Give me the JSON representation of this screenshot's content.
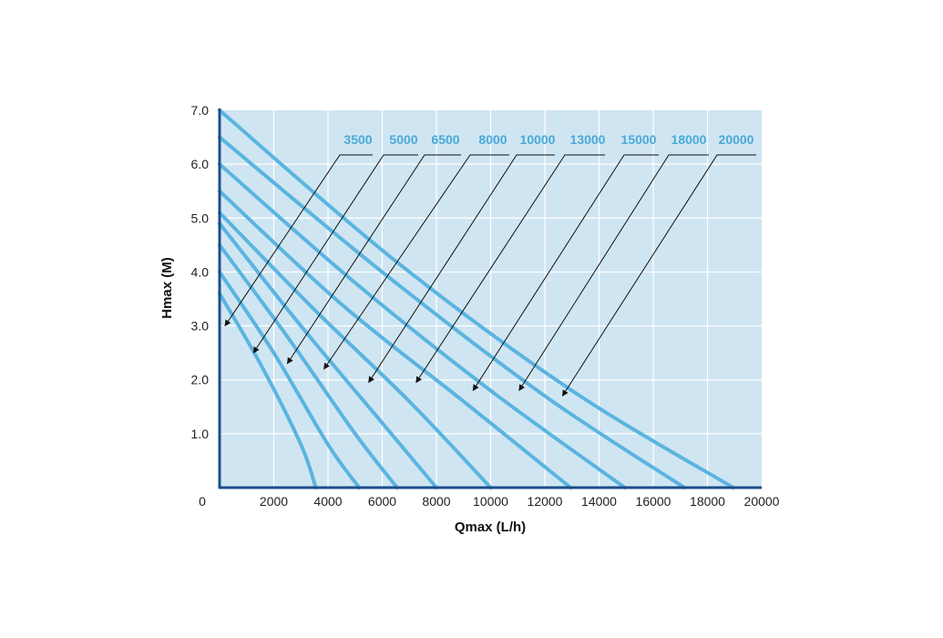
{
  "chart_data": {
    "type": "line",
    "title": "",
    "xlabel": "Qmax (L/h)",
    "ylabel": "Hmax (M)",
    "xlim": [
      0,
      20000
    ],
    "ylim": [
      0,
      7
    ],
    "x_ticks": [
      "0",
      "2000",
      "4000",
      "6000",
      "8000",
      "10000",
      "12000",
      "14000",
      "16000",
      "18000",
      "20000"
    ],
    "y_ticks": [
      "1.0",
      "2.0",
      "3.0",
      "4.0",
      "5.0",
      "6.0",
      "7.0"
    ],
    "grid": true,
    "legend": "top-right, callout arrows",
    "colors": {
      "background": "#cfe6f2",
      "curve": "#5bb4e0",
      "label": "#4aa9d8",
      "axis": "#1b4f8a",
      "grid": "#ffffff",
      "arrow": "#111111"
    },
    "series": [
      {
        "name": "3500",
        "points": [
          [
            0,
            3.6
          ],
          [
            1500,
            2.3
          ],
          [
            3000,
            0.8
          ],
          [
            3550,
            0.0
          ]
        ]
      },
      {
        "name": "5000",
        "points": [
          [
            0,
            4.0
          ],
          [
            2000,
            2.5
          ],
          [
            4000,
            0.8
          ],
          [
            5150,
            0.0
          ]
        ]
      },
      {
        "name": "6500",
        "points": [
          [
            0,
            4.5
          ],
          [
            2500,
            2.8
          ],
          [
            5000,
            1.0
          ],
          [
            6550,
            0.0
          ]
        ]
      },
      {
        "name": "8000",
        "points": [
          [
            0,
            4.9
          ],
          [
            3000,
            3.0
          ],
          [
            6000,
            1.2
          ],
          [
            8000,
            0.0
          ]
        ]
      },
      {
        "name": "10000",
        "points": [
          [
            0,
            5.1
          ],
          [
            3500,
            3.3
          ],
          [
            7000,
            1.6
          ],
          [
            10000,
            0.0
          ]
        ]
      },
      {
        "name": "13000",
        "points": [
          [
            0,
            5.5
          ],
          [
            4500,
            3.4
          ],
          [
            9000,
            1.6
          ],
          [
            12950,
            0.0
          ]
        ]
      },
      {
        "name": "15000",
        "points": [
          [
            0,
            6.0
          ],
          [
            5000,
            3.8
          ],
          [
            10000,
            1.8
          ],
          [
            14950,
            0.0
          ]
        ]
      },
      {
        "name": "18000",
        "points": [
          [
            0,
            6.5
          ],
          [
            6000,
            4.0
          ],
          [
            12000,
            1.7
          ],
          [
            17150,
            0.0
          ]
        ]
      },
      {
        "name": "20000",
        "points": [
          [
            0,
            7.0
          ],
          [
            6500,
            4.2
          ],
          [
            13000,
            1.8
          ],
          [
            18950,
            0.0
          ]
        ]
      }
    ],
    "annotations": [
      {
        "series": "3500",
        "arrow_to": [
          200,
          3.0
        ]
      },
      {
        "series": "5000",
        "arrow_to": [
          1250,
          2.5
        ]
      },
      {
        "series": "6500",
        "arrow_to": [
          2500,
          2.3
        ]
      },
      {
        "series": "8000",
        "arrow_to": [
          3850,
          2.2
        ]
      },
      {
        "series": "10000",
        "arrow_to": [
          5500,
          1.95
        ]
      },
      {
        "series": "13000",
        "arrow_to": [
          7250,
          1.95
        ]
      },
      {
        "series": "15000",
        "arrow_to": [
          9350,
          1.8
        ]
      },
      {
        "series": "18000",
        "arrow_to": [
          11050,
          1.8
        ]
      },
      {
        "series": "20000",
        "arrow_to": [
          12650,
          1.7
        ]
      }
    ]
  }
}
